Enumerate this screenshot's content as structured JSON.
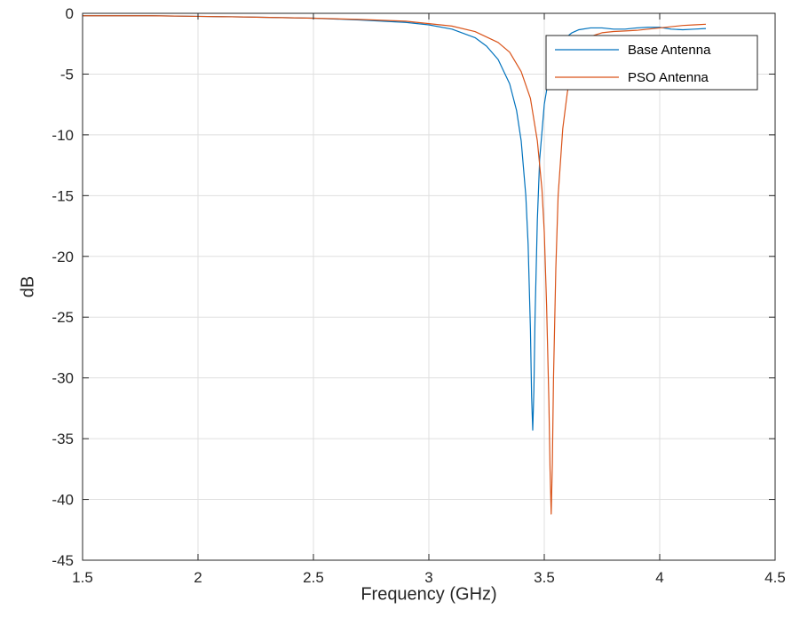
{
  "chart_data": {
    "type": "line",
    "title": "",
    "xlabel": "Frequency (GHz)",
    "ylabel": "dB",
    "xlim": [
      1.5,
      4.5
    ],
    "ylim": [
      -45,
      0
    ],
    "xticks": [
      1.5,
      2,
      2.5,
      3,
      3.5,
      4,
      4.5
    ],
    "xtick_labels": [
      "1.5",
      "2",
      "2.5",
      "3",
      "3.5",
      "4",
      "4.5"
    ],
    "yticks": [
      0,
      -5,
      -10,
      -15,
      -20,
      -25,
      -30,
      -35,
      -40,
      -45
    ],
    "ytick_labels": [
      "0",
      "-5",
      "-10",
      "-15",
      "-20",
      "-25",
      "-30",
      "-35",
      "-40",
      "-45"
    ],
    "grid": true,
    "legend_position": "top-right",
    "series": [
      {
        "name": "Base Antenna",
        "color": "#0072BD",
        "x": [
          1.5,
          1.8,
          2.0,
          2.2,
          2.5,
          2.7,
          2.9,
          3.0,
          3.1,
          3.2,
          3.25,
          3.3,
          3.35,
          3.38,
          3.4,
          3.42,
          3.43,
          3.44,
          3.445,
          3.45,
          3.455,
          3.46,
          3.47,
          3.48,
          3.5,
          3.52,
          3.55,
          3.58,
          3.62,
          3.65,
          3.7,
          3.75,
          3.8,
          3.85,
          3.9,
          3.95,
          4.0,
          4.05,
          4.1,
          4.15,
          4.2
        ],
        "y": [
          -0.2,
          -0.2,
          -0.25,
          -0.3,
          -0.4,
          -0.55,
          -0.75,
          -0.95,
          -1.3,
          -2.0,
          -2.7,
          -3.8,
          -5.8,
          -8.0,
          -10.5,
          -15.0,
          -19.0,
          -26.0,
          -31.5,
          -34.3,
          -31.0,
          -25.0,
          -17.0,
          -12.0,
          -7.5,
          -5.2,
          -3.2,
          -2.2,
          -1.6,
          -1.35,
          -1.2,
          -1.2,
          -1.3,
          -1.3,
          -1.2,
          -1.15,
          -1.15,
          -1.3,
          -1.35,
          -1.3,
          -1.25
        ]
      },
      {
        "name": "PSO Antenna",
        "color": "#D95319",
        "x": [
          1.5,
          1.8,
          2.0,
          2.2,
          2.5,
          2.7,
          2.9,
          3.0,
          3.1,
          3.2,
          3.3,
          3.35,
          3.4,
          3.44,
          3.47,
          3.49,
          3.5,
          3.51,
          3.52,
          3.525,
          3.53,
          3.535,
          3.54,
          3.55,
          3.56,
          3.58,
          3.6,
          3.62,
          3.65,
          3.7,
          3.75,
          3.8,
          3.85,
          3.9,
          3.95,
          4.0,
          4.05,
          4.1,
          4.15,
          4.2
        ],
        "y": [
          -0.2,
          -0.2,
          -0.25,
          -0.3,
          -0.4,
          -0.5,
          -0.65,
          -0.85,
          -1.05,
          -1.5,
          -2.4,
          -3.2,
          -4.8,
          -7.0,
          -10.5,
          -14.5,
          -18.0,
          -24.0,
          -32.0,
          -37.5,
          -41.2,
          -37.0,
          -30.0,
          -21.0,
          -15.0,
          -9.5,
          -6.5,
          -4.6,
          -3.0,
          -1.9,
          -1.6,
          -1.5,
          -1.45,
          -1.4,
          -1.3,
          -1.2,
          -1.1,
          -1.0,
          -0.95,
          -0.9
        ]
      }
    ]
  }
}
